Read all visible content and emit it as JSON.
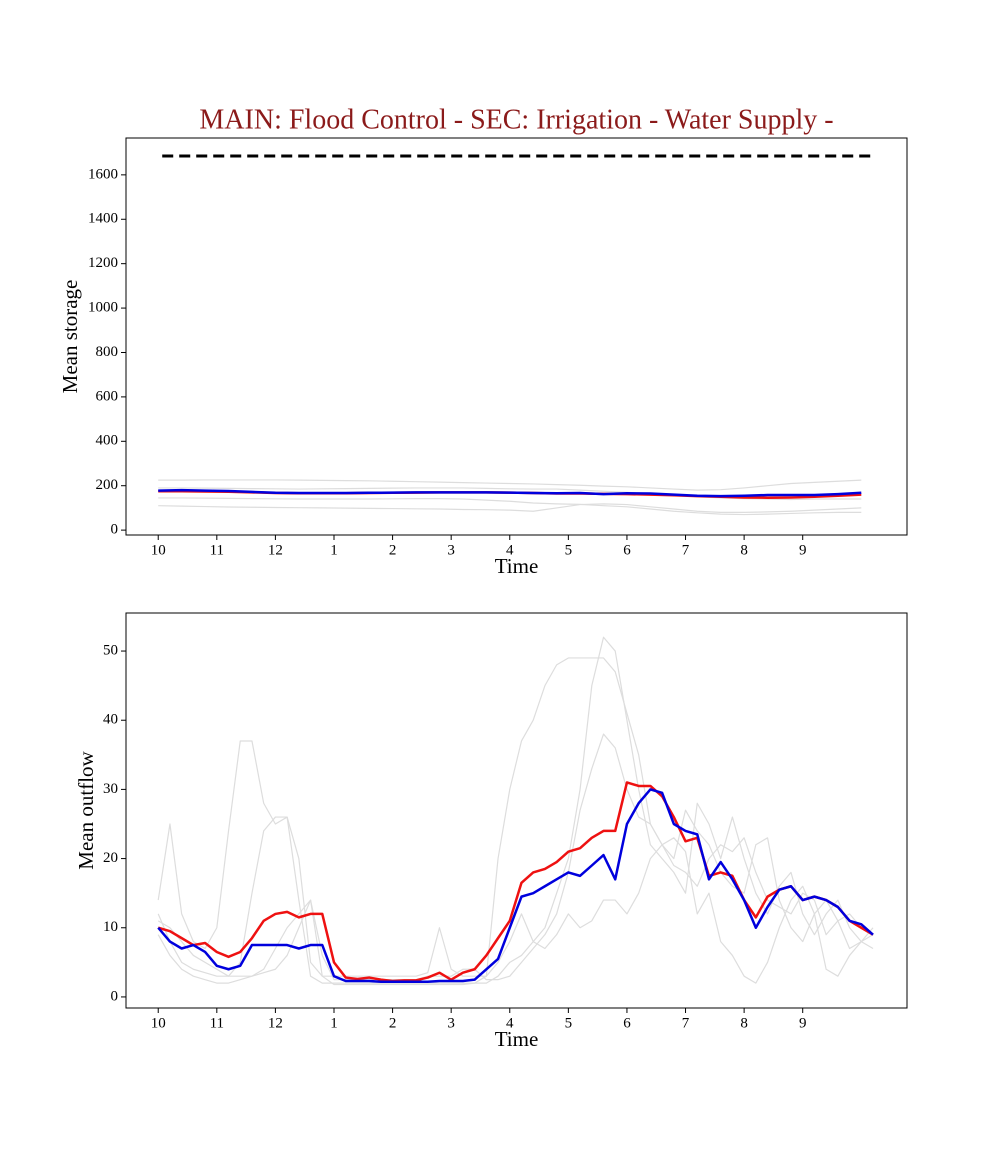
{
  "chart_data": [
    {
      "type": "line",
      "title": "MAIN: Flood Control - SEC: Irrigation - Water Supply -",
      "title_color": "#8b1a1a",
      "xlabel": "Time",
      "ylabel": "Mean storage",
      "xlim": [
        -0.55,
        12.78
      ],
      "ylim": [
        -22,
        1766
      ],
      "xticks": [
        {
          "value": 0,
          "label": "10"
        },
        {
          "value": 1,
          "label": "11"
        },
        {
          "value": 2,
          "label": "12"
        },
        {
          "value": 3,
          "label": "1"
        },
        {
          "value": 4,
          "label": "2"
        },
        {
          "value": 5,
          "label": "3"
        },
        {
          "value": 6,
          "label": "4"
        },
        {
          "value": 7,
          "label": "5"
        },
        {
          "value": 8,
          "label": "6"
        },
        {
          "value": 9,
          "label": "7"
        },
        {
          "value": 10,
          "label": "8"
        },
        {
          "value": 11,
          "label": "9"
        }
      ],
      "yticks": [
        0,
        200,
        400,
        600,
        800,
        1000,
        1200,
        1400,
        1600
      ],
      "grid": false,
      "reference_line": 1685,
      "reference_color": "#000000",
      "x": [
        0,
        0.4,
        0.8,
        1.2,
        1.6,
        2.0,
        2.4,
        2.8,
        3.2,
        3.6,
        4.0,
        4.4,
        4.8,
        5.2,
        5.6,
        6.0,
        6.4,
        6.8,
        7.2,
        7.6,
        8.0,
        8.4,
        8.8,
        9.2,
        9.6,
        10.0,
        10.4,
        10.8,
        11.2,
        11.6,
        12.0
      ],
      "series": [
        {
          "color": "#dddddd",
          "width": 1.2,
          "values": [
            225,
            225,
            226,
            226,
            226,
            226,
            225,
            224,
            223,
            222,
            220,
            218,
            216,
            214,
            212,
            210,
            208,
            205,
            202,
            198,
            195,
            190,
            185,
            180,
            182,
            190,
            200,
            210,
            215,
            220,
            225
          ]
        },
        {
          "color": "#dddddd",
          "width": 1.2,
          "values": [
            190,
            190,
            189,
            188,
            187,
            186,
            185,
            186,
            187,
            188,
            189,
            190,
            190,
            190,
            188,
            186,
            185,
            185,
            180,
            175,
            170,
            165,
            160,
            150,
            145,
            142,
            140,
            138,
            140,
            140,
            140
          ]
        },
        {
          "color": "#dddddd",
          "width": 1.2,
          "values": [
            110,
            108,
            106,
            104,
            103,
            102,
            101,
            100,
            99,
            98,
            97,
            96,
            95,
            93,
            92,
            90,
            85,
            100,
            115,
            118,
            115,
            105,
            95,
            85,
            80,
            80,
            82,
            85,
            90,
            95,
            100
          ]
        },
        {
          "color": "#dddddd",
          "width": 1.2,
          "values": [
            145,
            145,
            144,
            143,
            142,
            141,
            140,
            140,
            140,
            140,
            141,
            142,
            142,
            140,
            135,
            130,
            122,
            118,
            116,
            110,
            105,
            95,
            85,
            78,
            72,
            70,
            72,
            75,
            78,
            80,
            80
          ]
        },
        {
          "color": "#ee1111",
          "width": 2.5,
          "values": [
            175,
            175,
            174,
            173,
            170,
            167,
            166,
            166,
            166,
            167,
            168,
            169,
            170,
            170,
            170,
            169,
            167,
            165,
            165,
            163,
            162,
            160,
            157,
            153,
            150,
            147,
            146,
            147,
            150,
            155,
            160
          ]
        },
        {
          "color": "#0000dd",
          "width": 2.5,
          "values": [
            178,
            180,
            178,
            176,
            172,
            168,
            167,
            167,
            167,
            168,
            169,
            170,
            170,
            170,
            170,
            169,
            167,
            166,
            167,
            162,
            166,
            165,
            160,
            155,
            153,
            155,
            158,
            158,
            158,
            162,
            168
          ]
        }
      ]
    },
    {
      "type": "line",
      "xlabel": "Time",
      "ylabel": "Mean outflow",
      "xlim": [
        -0.55,
        12.78
      ],
      "ylim": [
        -1.6,
        55.5
      ],
      "xticks": [
        {
          "value": 0,
          "label": "10"
        },
        {
          "value": 1,
          "label": "11"
        },
        {
          "value": 2,
          "label": "12"
        },
        {
          "value": 3,
          "label": "1"
        },
        {
          "value": 4,
          "label": "2"
        },
        {
          "value": 5,
          "label": "3"
        },
        {
          "value": 6,
          "label": "4"
        },
        {
          "value": 7,
          "label": "5"
        },
        {
          "value": 8,
          "label": "6"
        },
        {
          "value": 9,
          "label": "7"
        },
        {
          "value": 10,
          "label": "8"
        },
        {
          "value": 11,
          "label": "9"
        }
      ],
      "yticks": [
        0,
        10,
        20,
        30,
        40,
        50
      ],
      "grid": false,
      "x": [
        0,
        0.2,
        0.4,
        0.6,
        0.8,
        1.0,
        1.2,
        1.4,
        1.6,
        1.8,
        2.0,
        2.2,
        2.4,
        2.6,
        2.8,
        3.0,
        3.2,
        3.4,
        3.6,
        3.8,
        4.0,
        4.2,
        4.4,
        4.6,
        4.8,
        5.0,
        5.2,
        5.4,
        5.6,
        5.8,
        6.0,
        6.2,
        6.4,
        6.6,
        6.8,
        7.0,
        7.2,
        7.4,
        7.6,
        7.8,
        8.0,
        8.2,
        8.4,
        8.6,
        8.8,
        9.0,
        9.2,
        9.4,
        9.6,
        9.8,
        10.0,
        10.2,
        10.4,
        10.6,
        10.8,
        11.0,
        11.2,
        11.4,
        11.6,
        11.8,
        12.0,
        12.2
      ],
      "series": [
        {
          "color": "#dddddd",
          "width": 1.2,
          "values": [
            14,
            25,
            12,
            8,
            7,
            10,
            24,
            37,
            37,
            28,
            25,
            26,
            14,
            3,
            2,
            2,
            2,
            2,
            2,
            2,
            2,
            2,
            2,
            2,
            2,
            2,
            2,
            2,
            3,
            20,
            30,
            37,
            40,
            45,
            48,
            49,
            49,
            49,
            49,
            47,
            41,
            35,
            25,
            22,
            20,
            27,
            24,
            22,
            18,
            16,
            15,
            22,
            23,
            14,
            10,
            8,
            12,
            14,
            11,
            7,
            8,
            10
          ]
        },
        {
          "color": "#dddddd",
          "width": 1.2,
          "values": [
            12,
            8,
            5,
            4,
            3.5,
            3,
            3,
            5,
            15,
            24,
            26,
            26,
            20,
            5,
            3,
            3,
            3,
            3,
            3,
            3,
            3,
            3,
            3,
            3.5,
            10,
            4,
            3,
            3,
            3,
            5,
            8,
            12,
            8,
            10,
            15,
            20,
            30,
            45,
            52,
            50,
            40,
            30,
            22,
            20,
            18,
            15,
            28,
            25,
            20,
            26,
            20,
            15,
            12,
            16,
            18,
            12,
            9,
            12,
            14,
            10,
            8,
            9
          ]
        },
        {
          "color": "#dddddd",
          "width": 1.2,
          "values": [
            9,
            6,
            4,
            3,
            2.5,
            2,
            2,
            2.5,
            3,
            4,
            7,
            10,
            12,
            14,
            3,
            1.8,
            1.8,
            1.8,
            1.8,
            1.8,
            1.8,
            1.8,
            1.8,
            1.8,
            1.8,
            1.8,
            1.8,
            2,
            2,
            3,
            5,
            6,
            8,
            7,
            9,
            12,
            10,
            11,
            14,
            14,
            12,
            15,
            20,
            22,
            23,
            21,
            12,
            15,
            8,
            6,
            3,
            2,
            5,
            10,
            14,
            16,
            12,
            4,
            3,
            6,
            8,
            7
          ]
        },
        {
          "color": "#dddddd",
          "width": 1.2,
          "values": [
            11,
            10,
            8,
            6,
            5,
            4,
            3,
            3,
            3,
            3.5,
            4,
            6,
            10,
            14,
            6,
            2.5,
            2.5,
            2.5,
            2.5,
            2.5,
            2.5,
            2.5,
            2.5,
            3,
            3,
            3,
            4,
            4,
            2.5,
            2.5,
            3,
            5,
            7,
            9,
            12,
            18,
            27,
            33,
            38,
            36,
            30,
            26,
            25,
            22,
            19,
            18,
            16,
            20,
            22,
            21,
            23,
            18,
            14,
            13,
            12,
            15,
            14,
            9,
            11,
            12,
            10,
            9
          ]
        },
        {
          "color": "#ee1111",
          "width": 2.5,
          "values": [
            10,
            9.5,
            8.5,
            7.5,
            7.8,
            6.5,
            5.8,
            6.5,
            8.5,
            11,
            12,
            12.3,
            11.5,
            12,
            12,
            5,
            2.8,
            2.6,
            2.8,
            2.5,
            2.3,
            2.4,
            2.4,
            2.8,
            3.5,
            2.5,
            3.5,
            4,
            6,
            8.5,
            11,
            16.5,
            18,
            18.5,
            19.5,
            21,
            21.5,
            23,
            24,
            24,
            31,
            30.5,
            30.5,
            29,
            26,
            22.5,
            23,
            17.5,
            18,
            17.5,
            14,
            11.5,
            14.5,
            15.5,
            16,
            14,
            14.5,
            14,
            13,
            11,
            10,
            9
          ]
        },
        {
          "color": "#0000dd",
          "width": 2.5,
          "values": [
            10,
            8,
            7,
            7.5,
            6.5,
            4.5,
            4,
            4.5,
            7.5,
            7.5,
            7.5,
            7.5,
            7,
            7.5,
            7.5,
            3,
            2.3,
            2.3,
            2.3,
            2.2,
            2.2,
            2.2,
            2.2,
            2.2,
            2.3,
            2.3,
            2.3,
            2.5,
            4,
            5.5,
            10,
            14.5,
            15,
            16,
            17,
            18,
            17.5,
            19,
            20.5,
            17,
            25,
            28,
            30,
            29.5,
            25,
            24,
            23.5,
            17,
            19.5,
            17,
            14,
            10,
            13,
            15.5,
            16,
            14,
            14.5,
            14,
            13,
            11,
            10.5,
            9
          ]
        }
      ]
    }
  ]
}
